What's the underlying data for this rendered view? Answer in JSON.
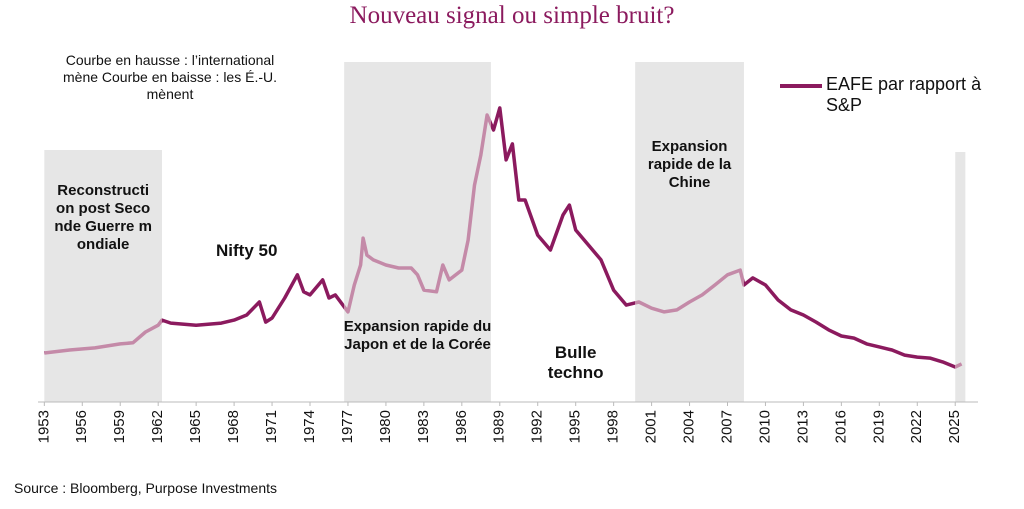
{
  "chart_data": {
    "type": "line",
    "title": "Nouveau signal ou simple bruit?",
    "note": "Courbe en hausse : l’international mène Courbe en baisse : les É.-U. mènent",
    "source": "Source : Bloomberg, Purpose Investments",
    "xlim": [
      1952.5,
      2026.8
    ],
    "ylim": [
      0,
      100
    ],
    "xticks": [
      1953,
      1956,
      1959,
      1962,
      1965,
      1968,
      1971,
      1974,
      1977,
      1980,
      1983,
      1986,
      1989,
      1992,
      1995,
      1998,
      2001,
      2004,
      2007,
      2010,
      2013,
      2016,
      2019,
      2022,
      2025
    ],
    "highlight_color": "#c48aa8",
    "shaded_regions": [
      {
        "x": [
          1953,
          1962.3
        ],
        "label": "Reconstruction post Seconde Guerre mondiale"
      },
      {
        "x": [
          1976.7,
          1988.3
        ],
        "label": "Expansion rapide du Japon et de la Corée"
      },
      {
        "x": [
          1999.7,
          2008.3
        ],
        "label": "Expansion rapide de la Chine"
      },
      {
        "x": [
          2025.0,
          2025.8
        ]
      }
    ],
    "annotations": [
      {
        "x": 1969,
        "y": 42,
        "text": "Nifty 50"
      },
      {
        "x": 1995,
        "y": 12,
        "text": "Bulle techno"
      }
    ],
    "series": [
      {
        "name": "EAFE par rapport à S&P",
        "color": "#8b1a5e",
        "x": [
          1953,
          1955,
          1957,
          1959,
          1960,
          1961,
          1962,
          1962.3,
          1963,
          1965,
          1967,
          1968,
          1969,
          1970,
          1970.5,
          1971,
          1972,
          1973,
          1973.5,
          1974,
          1975,
          1975.5,
          1976,
          1977,
          1977.5,
          1978,
          1978.2,
          1978.5,
          1979,
          1980,
          1981,
          1982,
          1982.5,
          1983,
          1984,
          1984.5,
          1985,
          1986,
          1986.5,
          1987,
          1987.5,
          1988,
          1988.5,
          1989,
          1989.5,
          1990,
          1990.5,
          1991,
          1992,
          1993,
          1994,
          1994.5,
          1995,
          1996,
          1997,
          1998,
          1999,
          2000,
          2001,
          2002,
          2003,
          2004,
          2005,
          2006,
          2007,
          2008,
          2008.3,
          2009,
          2010,
          2011,
          2012,
          2013,
          2014,
          2015,
          2016,
          2017,
          2018,
          2019,
          2020,
          2021,
          2022,
          2023,
          2024,
          2025,
          2025.5
        ],
        "values": [
          14.4,
          15.3,
          15.9,
          17.1,
          17.4,
          20.6,
          22.6,
          24.1,
          23.2,
          22.6,
          23.2,
          24.1,
          25.6,
          29.4,
          23.5,
          24.7,
          30.6,
          37.4,
          32.4,
          31.5,
          35.9,
          30.6,
          31.5,
          26.5,
          34.4,
          40.3,
          48.2,
          43.2,
          41.8,
          40.3,
          39.4,
          39.4,
          37.4,
          32.9,
          32.4,
          40.3,
          35.9,
          38.8,
          47.6,
          63.8,
          72.6,
          84.4,
          80.0,
          86.5,
          71.2,
          75.9,
          59.4,
          59.4,
          49.1,
          44.7,
          55.0,
          57.9,
          50.6,
          46.2,
          41.8,
          32.9,
          28.5,
          29.4,
          27.6,
          26.5,
          27.1,
          29.4,
          31.5,
          34.4,
          37.4,
          38.8,
          34.4,
          36.5,
          34.4,
          30.0,
          27.1,
          25.6,
          23.5,
          21.2,
          19.4,
          18.8,
          17.1,
          16.2,
          15.3,
          13.8,
          13.2,
          12.9,
          11.8,
          10.3,
          11.2
        ]
      }
    ]
  }
}
